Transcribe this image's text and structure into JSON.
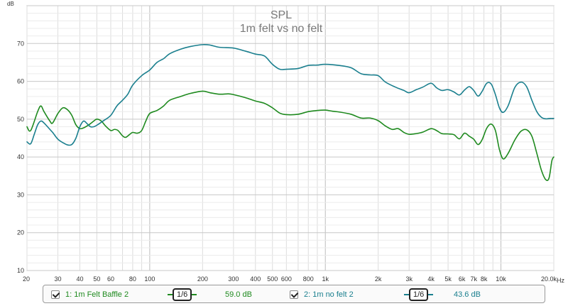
{
  "chart_data": {
    "type": "line",
    "title": "SPL",
    "subtitle": "1m felt vs no felt",
    "ylabel": "dB",
    "xlabel": "Hz",
    "x_scale": "log",
    "xlim": [
      20,
      20000
    ],
    "ylim": [
      10,
      80
    ],
    "grid": true,
    "y_ticks": [
      10,
      20,
      30,
      40,
      50,
      60,
      70
    ],
    "x_ticks": [
      {
        "v": 20,
        "label": "20"
      },
      {
        "v": 30,
        "label": "30"
      },
      {
        "v": 40,
        "label": "40"
      },
      {
        "v": 50,
        "label": "50"
      },
      {
        "v": 60,
        "label": "60"
      },
      {
        "v": 80,
        "label": "80"
      },
      {
        "v": 100,
        "label": "100"
      },
      {
        "v": 200,
        "label": "200"
      },
      {
        "v": 300,
        "label": "300"
      },
      {
        "v": 400,
        "label": "400"
      },
      {
        "v": 500,
        "label": "500"
      },
      {
        "v": 600,
        "label": "600"
      },
      {
        "v": 800,
        "label": "800"
      },
      {
        "v": 1000,
        "label": "1k"
      },
      {
        "v": 2000,
        "label": "2k"
      },
      {
        "v": 3000,
        "label": "3k"
      },
      {
        "v": 4000,
        "label": "4k"
      },
      {
        "v": 5000,
        "label": "5k"
      },
      {
        "v": 6000,
        "label": "6k"
      },
      {
        "v": 7000,
        "label": "7k"
      },
      {
        "v": 8000,
        "label": "8k"
      },
      {
        "v": 10000,
        "label": "10k"
      },
      {
        "v": 20000,
        "label": "20.0k"
      }
    ],
    "series": [
      {
        "name": "1: 1m Felt Baffle 2",
        "color": "#1f8a1f",
        "points": [
          [
            20,
            48
          ],
          [
            21,
            47
          ],
          [
            23,
            52
          ],
          [
            24,
            53.5
          ],
          [
            25,
            52
          ],
          [
            27,
            49.5
          ],
          [
            28,
            49
          ],
          [
            30,
            51.5
          ],
          [
            32,
            53
          ],
          [
            34,
            52.5
          ],
          [
            36,
            51
          ],
          [
            38,
            48.5
          ],
          [
            40,
            47.5
          ],
          [
            42,
            47.7
          ],
          [
            45,
            48.5
          ],
          [
            48,
            49.5
          ],
          [
            50,
            50
          ],
          [
            53,
            49.5
          ],
          [
            56,
            48.2
          ],
          [
            60,
            47
          ],
          [
            63,
            47.3
          ],
          [
            66,
            47
          ],
          [
            70,
            45.6
          ],
          [
            73,
            45.2
          ],
          [
            77,
            46
          ],
          [
            80,
            46.5
          ],
          [
            85,
            46.3
          ],
          [
            90,
            47
          ],
          [
            95,
            49.5
          ],
          [
            100,
            51.5
          ],
          [
            110,
            52.3
          ],
          [
            120,
            53.5
          ],
          [
            130,
            55
          ],
          [
            150,
            56
          ],
          [
            170,
            56.8
          ],
          [
            200,
            57.4
          ],
          [
            220,
            57
          ],
          [
            250,
            56.6
          ],
          [
            280,
            56.7
          ],
          [
            300,
            56.5
          ],
          [
            350,
            55.7
          ],
          [
            400,
            54.8
          ],
          [
            450,
            54.2
          ],
          [
            500,
            53
          ],
          [
            550,
            51.6
          ],
          [
            600,
            51.2
          ],
          [
            700,
            51.3
          ],
          [
            800,
            52
          ],
          [
            900,
            52.3
          ],
          [
            1000,
            52.4
          ],
          [
            1100,
            52.1
          ],
          [
            1200,
            51.9
          ],
          [
            1400,
            51.3
          ],
          [
            1600,
            50.3
          ],
          [
            1800,
            50.3
          ],
          [
            2000,
            49.6
          ],
          [
            2200,
            48.2
          ],
          [
            2400,
            47.3
          ],
          [
            2600,
            47.5
          ],
          [
            2800,
            46.5
          ],
          [
            3000,
            46
          ],
          [
            3300,
            46.2
          ],
          [
            3600,
            46.6
          ],
          [
            4000,
            47.5
          ],
          [
            4300,
            47
          ],
          [
            4600,
            46.2
          ],
          [
            5000,
            46.1
          ],
          [
            5400,
            45.9
          ],
          [
            5800,
            44.8
          ],
          [
            6200,
            46.3
          ],
          [
            6600,
            45.5
          ],
          [
            7000,
            44.7
          ],
          [
            7400,
            43.3
          ],
          [
            7800,
            44.5
          ],
          [
            8300,
            47.6
          ],
          [
            8800,
            48.7
          ],
          [
            9300,
            47
          ],
          [
            9800,
            42
          ],
          [
            10300,
            39.5
          ],
          [
            11000,
            41
          ],
          [
            12000,
            44.5
          ],
          [
            13000,
            46.8
          ],
          [
            14000,
            47.2
          ],
          [
            15000,
            45.5
          ],
          [
            16000,
            41
          ],
          [
            17000,
            36.5
          ],
          [
            18000,
            34
          ],
          [
            18800,
            34.5
          ],
          [
            19500,
            39
          ],
          [
            20000,
            40
          ]
        ]
      },
      {
        "name": "2: 1m no felt 2",
        "color": "#1a7f8e",
        "points": [
          [
            20,
            44
          ],
          [
            21,
            43.5
          ],
          [
            22,
            46
          ],
          [
            23,
            48.5
          ],
          [
            24,
            49.5
          ],
          [
            25,
            49
          ],
          [
            27,
            47.3
          ],
          [
            28,
            46.5
          ],
          [
            30,
            44.7
          ],
          [
            32,
            43.8
          ],
          [
            34,
            43.2
          ],
          [
            36,
            43.3
          ],
          [
            38,
            45
          ],
          [
            40,
            48
          ],
          [
            42,
            49.5
          ],
          [
            44,
            48.8
          ],
          [
            46,
            48
          ],
          [
            48,
            48
          ],
          [
            50,
            48.4
          ],
          [
            55,
            49.7
          ],
          [
            60,
            51
          ],
          [
            65,
            53.5
          ],
          [
            70,
            55
          ],
          [
            75,
            56.6
          ],
          [
            80,
            59
          ],
          [
            90,
            61.5
          ],
          [
            100,
            63
          ],
          [
            110,
            65
          ],
          [
            120,
            66
          ],
          [
            130,
            67.3
          ],
          [
            150,
            68.5
          ],
          [
            170,
            69.2
          ],
          [
            200,
            69.7
          ],
          [
            220,
            69.6
          ],
          [
            250,
            69
          ],
          [
            300,
            68.8
          ],
          [
            350,
            68
          ],
          [
            400,
            67.2
          ],
          [
            450,
            66.7
          ],
          [
            500,
            64.5
          ],
          [
            550,
            63.2
          ],
          [
            600,
            63.2
          ],
          [
            700,
            63.4
          ],
          [
            800,
            64.2
          ],
          [
            900,
            64.3
          ],
          [
            1000,
            64.5
          ],
          [
            1200,
            64.2
          ],
          [
            1400,
            63.6
          ],
          [
            1600,
            62
          ],
          [
            1800,
            61.7
          ],
          [
            2000,
            61.5
          ],
          [
            2200,
            59.8
          ],
          [
            2500,
            58.5
          ],
          [
            2800,
            57.6
          ],
          [
            3000,
            57
          ],
          [
            3300,
            57.8
          ],
          [
            3600,
            58.5
          ],
          [
            4000,
            59.5
          ],
          [
            4300,
            58.3
          ],
          [
            4600,
            57.6
          ],
          [
            5000,
            57.8
          ],
          [
            5400,
            57.2
          ],
          [
            5800,
            56.4
          ],
          [
            6200,
            57.7
          ],
          [
            6600,
            58.6
          ],
          [
            7000,
            57.6
          ],
          [
            7400,
            56.1
          ],
          [
            7800,
            57.3
          ],
          [
            8300,
            59.5
          ],
          [
            8800,
            59.3
          ],
          [
            9300,
            56.5
          ],
          [
            9800,
            53
          ],
          [
            10300,
            51.8
          ],
          [
            11000,
            53.6
          ],
          [
            12000,
            58.4
          ],
          [
            13000,
            59.8
          ],
          [
            14000,
            58.6
          ],
          [
            15000,
            55
          ],
          [
            16000,
            52
          ],
          [
            17000,
            50.5
          ],
          [
            18000,
            50.1
          ],
          [
            19000,
            50.2
          ],
          [
            20000,
            50.2
          ]
        ]
      }
    ]
  },
  "legend": {
    "items": [
      {
        "label": "1: 1m Felt Baffle 2",
        "smoothing": "1/6",
        "value": "59.0 dB",
        "color": "#1f8a1f"
      },
      {
        "label": "2: 1m no felt 2",
        "smoothing": "1/6",
        "value": "43.6 dB",
        "color": "#1a7f8e"
      }
    ]
  }
}
